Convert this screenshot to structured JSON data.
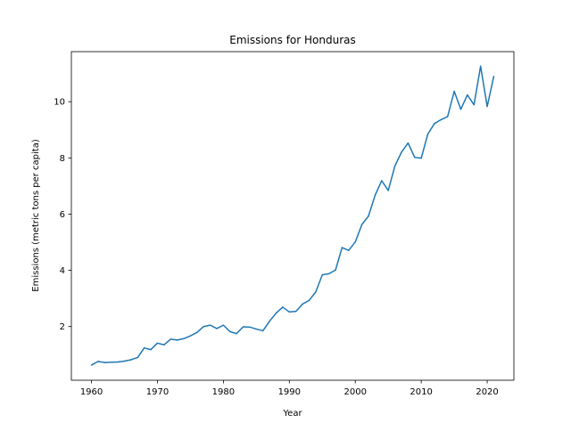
{
  "chart_data": {
    "type": "line",
    "title": "Emissions for Honduras",
    "xlabel": "Year",
    "ylabel": "Emissions (metric tons per capita)",
    "xlim": [
      1956.95,
      2024.05
    ],
    "ylim": [
      0.09,
      11.78
    ],
    "xticks": [
      1960,
      1970,
      1980,
      1990,
      2000,
      2010,
      2020
    ],
    "yticks": [
      2,
      4,
      6,
      8,
      10
    ],
    "grid": false,
    "legend": "none",
    "colors": {
      "line": "#1f77b4",
      "axes": "#000000",
      "background": "#ffffff"
    },
    "series": [
      {
        "x": [
          1960,
          1961,
          1962,
          1963,
          1964,
          1965,
          1966,
          1967,
          1968,
          1969,
          1970,
          1971,
          1972,
          1973,
          1974,
          1975,
          1976,
          1977,
          1978,
          1979,
          1980,
          1981,
          1982,
          1983,
          1984,
          1985,
          1986,
          1987,
          1988,
          1989,
          1990,
          1991,
          1992,
          1993,
          1994,
          1995,
          1996,
          1997,
          1998,
          1999,
          2000,
          2001,
          2002,
          2003,
          2004,
          2005,
          2006,
          2007,
          2008,
          2009,
          2010,
          2011,
          2012,
          2013,
          2014,
          2015,
          2016,
          2017,
          2018,
          2019,
          2020,
          2021
        ],
        "values": [
          0.63,
          0.76,
          0.72,
          0.73,
          0.74,
          0.77,
          0.82,
          0.9,
          1.24,
          1.18,
          1.41,
          1.35,
          1.55,
          1.52,
          1.57,
          1.67,
          1.79,
          2.0,
          2.05,
          1.93,
          2.05,
          1.82,
          1.75,
          1.99,
          1.98,
          1.91,
          1.85,
          2.19,
          2.48,
          2.69,
          2.52,
          2.54,
          2.8,
          2.93,
          3.23,
          3.84,
          3.88,
          4.01,
          4.81,
          4.71,
          5.01,
          5.63,
          5.93,
          6.67,
          7.19,
          6.84,
          7.71,
          8.2,
          8.53,
          8.02,
          7.99,
          8.85,
          9.22,
          9.36,
          9.47,
          10.37,
          9.73,
          10.24,
          9.89,
          11.26,
          9.83,
          10.9
        ]
      }
    ]
  }
}
